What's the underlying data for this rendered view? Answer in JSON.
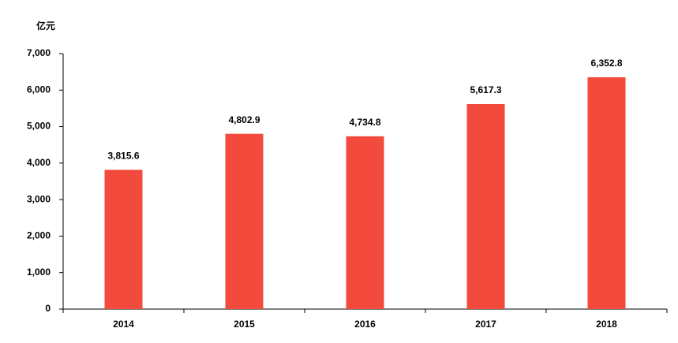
{
  "chart_data": {
    "type": "bar",
    "unit_label": "亿元",
    "categories": [
      "2014",
      "2015",
      "2016",
      "2017",
      "2018"
    ],
    "values": [
      3815.6,
      4802.9,
      4734.8,
      5617.3,
      6352.8
    ],
    "value_labels": [
      "3,815.6",
      "4,802.9",
      "4,734.8",
      "5,617.3",
      "6,352.8"
    ],
    "color": "#f24a3c",
    "ylim": [
      0,
      7000
    ],
    "yticks": [
      0,
      {
        "value": 1000,
        "label": "1,000"
      },
      {
        "value": 2000,
        "label": "2,000"
      },
      {
        "value": 3000,
        "label": "3,000"
      },
      {
        "value": 4000,
        "label": "4,000"
      },
      {
        "value": 5000,
        "label": "5,000"
      },
      {
        "value": 6000,
        "label": "6,000"
      },
      {
        "value": 7000,
        "label": "7,000"
      }
    ],
    "grid": false
  }
}
